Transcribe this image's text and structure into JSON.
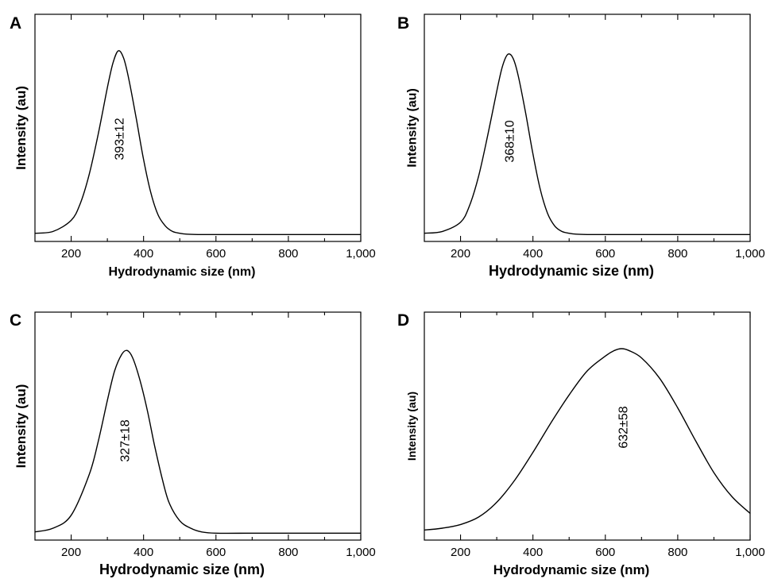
{
  "chart_data": [
    {
      "panel": "A",
      "type": "line",
      "xlabel": "Hydrodynamic size (nm)",
      "ylabel": "Intensity (au)",
      "xlim": [
        100,
        1000
      ],
      "ylim": [
        0,
        100
      ],
      "xticks": [
        200,
        400,
        600,
        800,
        1000
      ],
      "xtick_labels": [
        "200",
        "400",
        "600",
        "800",
        "1,000"
      ],
      "yticks_shown": false,
      "annotation": "393±12",
      "series": [
        {
          "x": [
            100,
            150,
            200,
            225,
            250,
            275,
            300,
            315,
            330,
            345,
            360,
            380,
            400,
            420,
            440,
            460,
            480,
            500,
            520,
            550,
            600,
            700,
            800,
            900,
            1000
          ],
          "y": [
            1,
            2,
            8,
            17,
            33,
            55,
            80,
            93,
            100,
            96,
            84,
            63,
            41,
            23,
            11,
            5,
            2,
            1,
            0.5,
            0.3,
            0.3,
            0.3,
            0.3,
            0.3,
            0.3
          ]
        }
      ]
    },
    {
      "panel": "B",
      "type": "line",
      "xlabel": "Hydrodynamic size (nm)",
      "ylabel": "Intensity (au)",
      "xlim": [
        100,
        1000
      ],
      "ylim": [
        0,
        100
      ],
      "xticks": [
        200,
        400,
        600,
        800,
        1000
      ],
      "xtick_labels": [
        "200",
        "400",
        "600",
        "800",
        "1,000"
      ],
      "yticks_shown": false,
      "annotation": "368±10",
      "series": [
        {
          "x": [
            100,
            150,
            200,
            225,
            250,
            275,
            300,
            315,
            330,
            345,
            360,
            380,
            400,
            420,
            440,
            460,
            480,
            500,
            520,
            550,
            600,
            700,
            800,
            900,
            1000
          ],
          "y": [
            1,
            2,
            7,
            16,
            32,
            54,
            78,
            91,
            98,
            96,
            86,
            66,
            44,
            25,
            12,
            5,
            2,
            1,
            0.5,
            0.3,
            0.3,
            0.3,
            0.3,
            0.3,
            0.3
          ]
        }
      ]
    },
    {
      "panel": "C",
      "type": "line",
      "xlabel": "Hydrodynamic size (nm)",
      "ylabel": "Intensity (au)",
      "xlim": [
        100,
        1000
      ],
      "ylim": [
        0,
        100
      ],
      "xticks": [
        200,
        400,
        600,
        800,
        1000
      ],
      "xtick_labels": [
        "200",
        "400",
        "600",
        "800",
        "1,000"
      ],
      "yticks_shown": false,
      "annotation": "327±18",
      "series": [
        {
          "x": [
            100,
            150,
            200,
            250,
            275,
            300,
            320,
            340,
            355,
            370,
            390,
            410,
            430,
            450,
            470,
            500,
            530,
            560,
            600,
            700,
            800,
            900,
            1000
          ],
          "y": [
            1,
            3,
            10,
            32,
            50,
            72,
            88,
            97,
            99,
            95,
            83,
            67,
            48,
            31,
            17,
            7,
            3,
            1,
            0.3,
            0.3,
            0.3,
            0.3,
            0.3
          ]
        }
      ]
    },
    {
      "panel": "D",
      "type": "line",
      "xlabel": "Hydrodynamic size (nm)",
      "ylabel": "Intensity (au)",
      "xlim": [
        100,
        1000
      ],
      "ylim": [
        0,
        100
      ],
      "xticks": [
        200,
        400,
        600,
        800,
        1000
      ],
      "xtick_labels": [
        "200",
        "400",
        "600",
        "800",
        "1,000"
      ],
      "yticks_shown": false,
      "annotation": "632±58",
      "series": [
        {
          "x": [
            100,
            150,
            200,
            250,
            300,
            350,
            400,
            450,
            500,
            550,
            600,
            625,
            645,
            665,
            700,
            750,
            800,
            850,
            900,
            950,
            1000
          ],
          "y": [
            2,
            3,
            5,
            9,
            17,
            29,
            44,
            60,
            75,
            88,
            96,
            99,
            100,
            99,
            95,
            84,
            68,
            50,
            33,
            20,
            11
          ]
        }
      ]
    }
  ]
}
